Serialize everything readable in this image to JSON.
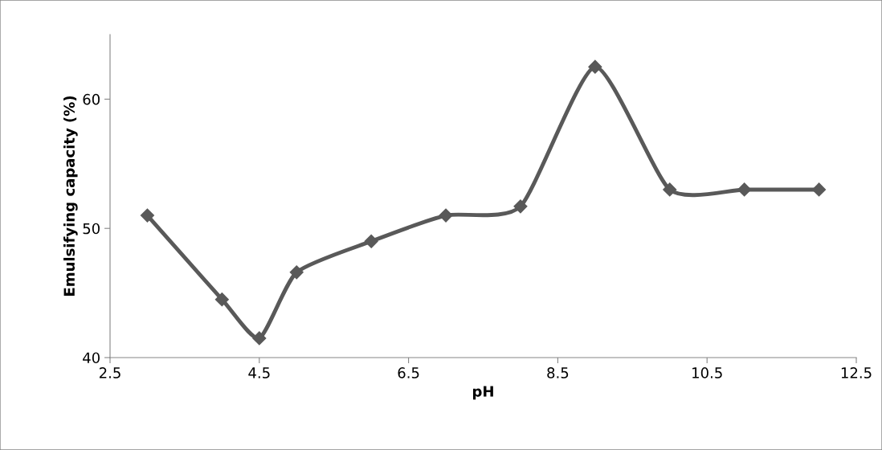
{
  "chart_data": {
    "type": "line",
    "xlabel": "pH",
    "ylabel": "Emulsifying capacity (%)",
    "x": [
      3,
      4,
      4.5,
      5,
      6,
      7,
      8,
      9,
      10,
      11,
      12
    ],
    "series": [
      {
        "color": "#595959",
        "values": [
          51,
          44.5,
          41.5,
          46.6,
          49,
          51,
          51.7,
          62.5,
          53,
          53,
          53
        ]
      }
    ],
    "xlim": [
      2.5,
      12.5
    ],
    "xticks": [
      {
        "value": 2.5,
        "label": "2.5"
      },
      {
        "value": 4.5,
        "label": "4.5"
      },
      {
        "value": 6.5,
        "label": "6.5"
      },
      {
        "value": 8.5,
        "label": "8.5"
      },
      {
        "value": 10.5,
        "label": "10.5"
      },
      {
        "value": 12.5,
        "label": "12.5"
      }
    ],
    "ylim": [
      40,
      65
    ],
    "yticks": [
      40,
      50,
      60
    ],
    "marker": "diamond",
    "line_style": "solid",
    "grid": false,
    "legend": false
  }
}
